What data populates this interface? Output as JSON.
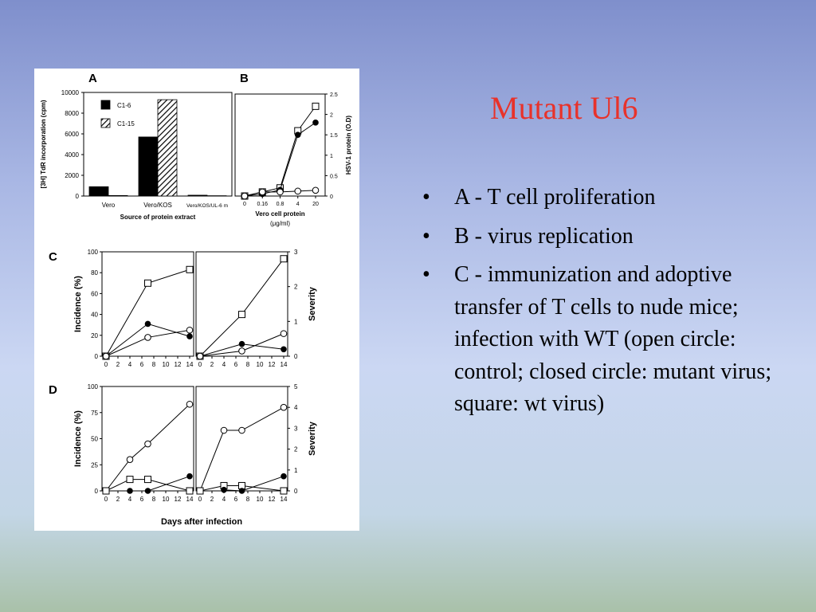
{
  "slide": {
    "title": "Mutant Ul6",
    "bullets": [
      "A - T cell proliferation",
      "B - virus replication",
      "C - immunization and adoptive transfer of T cells to nude mice; infection with WT (open circle: control; closed circle: mutant virus; square: wt virus)"
    ],
    "bullet_symbol": "•"
  },
  "colors": {
    "title": "#e8322a",
    "bg_top": "#7f8fcc",
    "bg_bottom": "#a9c1a9",
    "ink": "#000000"
  },
  "chart_data": [
    {
      "panel": "A",
      "type": "bar",
      "ylabel": "[3H] TdR incorporation (cpm)",
      "xlabel": "Source of protein extract",
      "categories": [
        "Vero",
        "Vero/KOS",
        "Vero/KOS/UL-6 m"
      ],
      "yticks": [
        0,
        2000,
        4000,
        6000,
        8000,
        10000
      ],
      "ylim": [
        0,
        10000
      ],
      "series": [
        {
          "name": "C1-6",
          "fill": "solid",
          "values": [
            900,
            5700,
            80
          ]
        },
        {
          "name": "C1-15",
          "fill": "hatched",
          "values": [
            50,
            9300,
            30
          ]
        }
      ],
      "legend": "top-left"
    },
    {
      "panel": "B",
      "type": "line",
      "ylabel": "HSV-1 protein (O.D)",
      "xlabel": "Vero cell protein",
      "xlabel_unit": "(μg/ml)",
      "categories": [
        "0",
        "0.16",
        "0.8",
        "4",
        "20"
      ],
      "yticks": [
        "0",
        "0.5",
        "1",
        "1.5",
        "2",
        "2.5"
      ],
      "ylim": [
        0,
        2.5
      ],
      "y_axis_side": "right",
      "series": [
        {
          "marker": "square-open",
          "values": [
            0,
            0.1,
            0.2,
            1.6,
            2.2
          ]
        },
        {
          "marker": "circle-filled",
          "values": [
            0,
            0.05,
            0.15,
            1.5,
            1.8
          ]
        },
        {
          "marker": "circle-open",
          "values": [
            0,
            0.1,
            0.1,
            0.12,
            0.14
          ]
        }
      ]
    },
    {
      "panel": "C",
      "type": "line",
      "ylabel_left": "Incidence (%)",
      "ylabel_right": "Severity",
      "xticks": [
        "0",
        "2",
        "4",
        "6",
        "8",
        "10",
        "12",
        "14"
      ],
      "incidence": {
        "ylim": [
          0,
          100
        ],
        "yticks": [
          "0",
          "20",
          "40",
          "60",
          "80",
          "100"
        ],
        "series": [
          {
            "marker": "square-open",
            "x": [
              0,
              7,
              14
            ],
            "y": [
              0,
              70,
              83
            ]
          },
          {
            "marker": "circle-filled",
            "x": [
              0,
              7,
              14
            ],
            "y": [
              0,
              31,
              19
            ]
          },
          {
            "marker": "circle-open",
            "x": [
              0,
              7,
              14
            ],
            "y": [
              0,
              18,
              25
            ]
          }
        ]
      },
      "severity": {
        "ylim": [
          0,
          3
        ],
        "yticks": [
          "0",
          "1",
          "2",
          "3"
        ],
        "series": [
          {
            "marker": "square-open",
            "x": [
              0,
              7,
              14
            ],
            "y": [
              0,
              1.2,
              2.8
            ]
          },
          {
            "marker": "circle-filled",
            "x": [
              0,
              7,
              14
            ],
            "y": [
              0,
              0.35,
              0.2
            ]
          },
          {
            "marker": "circle-open",
            "x": [
              0,
              7,
              14
            ],
            "y": [
              0,
              0.15,
              0.65
            ]
          }
        ]
      }
    },
    {
      "panel": "D",
      "type": "line",
      "ylabel_left": "Incidence (%)",
      "ylabel_right": "Severity",
      "xlabel": "Days after infection",
      "xticks": [
        "0",
        "2",
        "4",
        "6",
        "8",
        "10",
        "12",
        "14"
      ],
      "incidence": {
        "ylim": [
          0,
          100
        ],
        "yticks": [
          "0",
          "25",
          "50",
          "75",
          "100"
        ],
        "series": [
          {
            "marker": "circle-open",
            "x": [
              0,
              4,
              7,
              14
            ],
            "y": [
              0,
              30,
              45,
              83
            ]
          },
          {
            "marker": "square-open",
            "x": [
              0,
              4,
              7,
              14
            ],
            "y": [
              0,
              11,
              11,
              0
            ]
          },
          {
            "marker": "circle-filled",
            "x": [
              4,
              7,
              14
            ],
            "y": [
              0,
              0,
              14
            ]
          }
        ]
      },
      "severity": {
        "ylim": [
          0,
          5
        ],
        "yticks": [
          "0",
          "1",
          "2",
          "3",
          "4",
          "5"
        ],
        "series": [
          {
            "marker": "circle-open",
            "x": [
              0,
              4,
              7,
              14
            ],
            "y": [
              0,
              2.9,
              2.9,
              4
            ]
          },
          {
            "marker": "square-open",
            "x": [
              0,
              4,
              7,
              14
            ],
            "y": [
              0,
              0.25,
              0.25,
              0
            ]
          },
          {
            "marker": "circle-filled",
            "x": [
              4,
              7,
              14
            ],
            "y": [
              0.05,
              0,
              0.7
            ]
          }
        ]
      }
    }
  ]
}
